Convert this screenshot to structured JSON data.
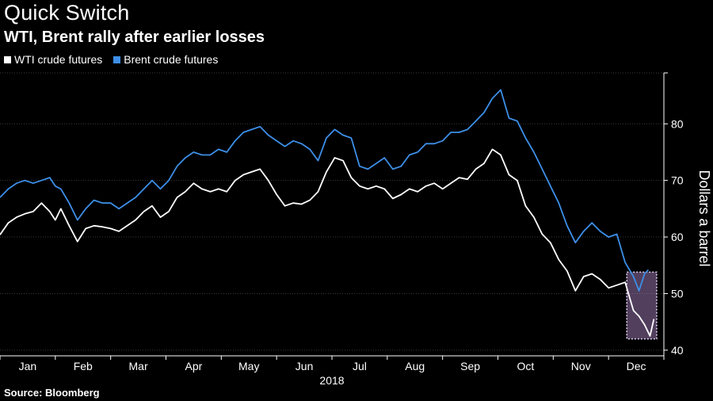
{
  "header": {
    "title": "Quick Switch",
    "subtitle": "WTI, Brent rally after earlier losses"
  },
  "footer": {
    "source": "Source: Bloomberg"
  },
  "chart_data": {
    "type": "line",
    "title": "Quick Switch",
    "subtitle": "WTI, Brent rally after earlier losses",
    "ylabel": "Dollars a barrel",
    "xlabel": "2018",
    "x_tick_labels": [
      "Jan",
      "Feb",
      "Mar",
      "Apr",
      "May",
      "Jun",
      "Jul",
      "Aug",
      "Sep",
      "Oct",
      "Nov",
      "Dec"
    ],
    "y_ticks": [
      40,
      50,
      60,
      70,
      80
    ],
    "ylim": [
      39,
      89
    ],
    "x_range_months": [
      0,
      12
    ],
    "grid": true,
    "legend_position": "top-left",
    "colors": {
      "background": "#000000",
      "wti": "#ffffff",
      "brent": "#3d8fe8",
      "highlight": "#b48ccf",
      "grid": "#3a3a3a"
    },
    "highlight": {
      "x_start": 11.33,
      "x_end": 11.87,
      "y_min": 42,
      "y_max": 53.8
    },
    "series": [
      {
        "name": "WTI crude futures",
        "color": "#ffffff",
        "x": [
          0.0,
          0.15,
          0.3,
          0.45,
          0.6,
          0.75,
          0.9,
          1.0,
          1.1,
          1.25,
          1.4,
          1.55,
          1.7,
          1.85,
          2.0,
          2.15,
          2.3,
          2.45,
          2.6,
          2.75,
          2.9,
          3.05,
          3.2,
          3.35,
          3.5,
          3.65,
          3.8,
          3.95,
          4.1,
          4.25,
          4.4,
          4.55,
          4.7,
          4.85,
          5.0,
          5.15,
          5.3,
          5.45,
          5.6,
          5.75,
          5.9,
          6.05,
          6.2,
          6.35,
          6.5,
          6.65,
          6.8,
          6.95,
          7.1,
          7.25,
          7.4,
          7.55,
          7.7,
          7.85,
          8.0,
          8.15,
          8.3,
          8.45,
          8.6,
          8.75,
          8.9,
          9.05,
          9.2,
          9.35,
          9.5,
          9.65,
          9.8,
          9.95,
          10.1,
          10.25,
          10.4,
          10.55,
          10.7,
          10.85,
          11.0,
          11.15,
          11.3,
          11.45,
          11.55,
          11.65,
          11.75,
          11.82
        ],
        "values": [
          60.4,
          62.5,
          63.5,
          64.1,
          64.5,
          66.0,
          64.5,
          63.0,
          65.0,
          62.0,
          59.2,
          61.5,
          62.0,
          61.8,
          61.5,
          61.0,
          62.0,
          63.0,
          64.5,
          65.5,
          63.5,
          64.5,
          67.0,
          68.0,
          69.5,
          68.5,
          68.0,
          68.5,
          68.0,
          70.0,
          71.0,
          71.5,
          72.0,
          70.0,
          67.5,
          65.5,
          66.0,
          65.8,
          66.5,
          68.0,
          71.5,
          74.0,
          73.5,
          70.5,
          69.0,
          68.5,
          69.0,
          68.5,
          66.8,
          67.5,
          68.5,
          68.0,
          69.0,
          69.5,
          68.5,
          69.5,
          70.5,
          70.2,
          72.0,
          73.0,
          75.5,
          74.5,
          71.0,
          70.0,
          65.5,
          63.5,
          60.5,
          59.0,
          56.0,
          54.0,
          50.5,
          53.0,
          53.5,
          52.5,
          51.0,
          51.5,
          52.0,
          47.0,
          46.0,
          44.5,
          42.5,
          45.5
        ]
      },
      {
        "name": "Brent crude futures",
        "color": "#3d8fe8",
        "x": [
          0.0,
          0.15,
          0.3,
          0.45,
          0.6,
          0.75,
          0.9,
          1.0,
          1.1,
          1.25,
          1.4,
          1.55,
          1.7,
          1.85,
          2.0,
          2.15,
          2.3,
          2.45,
          2.6,
          2.75,
          2.9,
          3.05,
          3.2,
          3.35,
          3.5,
          3.65,
          3.8,
          3.95,
          4.1,
          4.25,
          4.4,
          4.55,
          4.7,
          4.85,
          5.0,
          5.15,
          5.3,
          5.45,
          5.6,
          5.75,
          5.9,
          6.05,
          6.2,
          6.35,
          6.5,
          6.65,
          6.8,
          6.95,
          7.1,
          7.25,
          7.4,
          7.55,
          7.7,
          7.85,
          8.0,
          8.15,
          8.3,
          8.45,
          8.6,
          8.75,
          8.9,
          9.05,
          9.2,
          9.35,
          9.5,
          9.65,
          9.8,
          9.95,
          10.1,
          10.25,
          10.4,
          10.55,
          10.7,
          10.85,
          11.0,
          11.15,
          11.3,
          11.45,
          11.55,
          11.65,
          11.72
        ],
        "values": [
          67.0,
          68.5,
          69.5,
          70.0,
          69.5,
          70.0,
          70.5,
          69.0,
          68.5,
          66.0,
          63.0,
          65.0,
          66.5,
          66.0,
          66.0,
          65.0,
          66.0,
          67.0,
          68.5,
          70.0,
          68.5,
          70.0,
          72.5,
          74.0,
          75.0,
          74.5,
          74.5,
          75.5,
          75.0,
          77.0,
          78.5,
          79.0,
          79.5,
          78.0,
          77.0,
          76.0,
          77.0,
          76.5,
          75.5,
          73.5,
          77.5,
          79.0,
          78.0,
          77.5,
          72.5,
          72.0,
          73.0,
          74.0,
          72.0,
          72.5,
          74.5,
          75.0,
          76.5,
          76.5,
          77.0,
          78.5,
          78.5,
          79.0,
          80.5,
          82.0,
          84.5,
          86.0,
          81.0,
          80.5,
          77.5,
          75.0,
          72.0,
          69.0,
          66.0,
          62.0,
          59.0,
          61.0,
          62.5,
          61.0,
          60.0,
          60.5,
          55.5,
          53.0,
          50.5,
          53.5,
          54.2
        ]
      }
    ]
  }
}
